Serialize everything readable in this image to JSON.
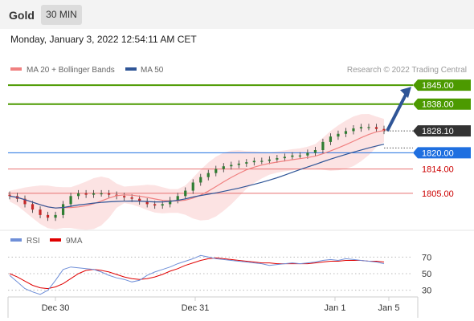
{
  "header": {
    "title": "Gold",
    "timeframe": "30 MIN"
  },
  "timestamp": "Monday, January 3, 2022 12:54:11 AM CET",
  "watermark": "Research © 2022 Trading Central",
  "colors": {
    "ma20": "#f08080",
    "ma50": "#2f5597",
    "resistance": "#4c9a00",
    "pivot": "#1f6fe0",
    "support": "#e87070",
    "support_text": "#cc0000",
    "current": "#333333",
    "rsi": "#6f8fd8",
    "rsi_ma": "#e00000"
  },
  "chart_data": [
    {
      "type": "candlestick",
      "title": "",
      "legend": [
        {
          "name": "MA 20 + Bollinger Bands",
          "color": "#f08080"
        },
        {
          "name": "MA 50",
          "color": "#2f5597"
        }
      ],
      "ylim": [
        1794,
        1848
      ],
      "x_ticks": [
        "Dec 30",
        "Dec 31",
        "Jan 1",
        "Jan 5"
      ],
      "levels": [
        {
          "value": 1845.0,
          "label": "1845.00",
          "kind": "resistance"
        },
        {
          "value": 1838.0,
          "label": "1838.00",
          "kind": "resistance"
        },
        {
          "value": 1820.0,
          "label": "1820.00",
          "kind": "pivot"
        },
        {
          "value": 1814.0,
          "label": "1814.00",
          "kind": "support"
        },
        {
          "value": 1805.0,
          "label": "1805.00",
          "kind": "support"
        }
      ],
      "current": {
        "value": 1828.1,
        "label": "1828.10"
      },
      "close_series": [
        1804,
        1803,
        1801,
        1799,
        1797,
        1796,
        1797,
        1801,
        1804,
        1805,
        1804.5,
        1805,
        1805,
        1804.5,
        1804,
        1803.5,
        1803,
        1802,
        1801,
        1800.5,
        1801,
        1802.5,
        1804,
        1806,
        1809,
        1811,
        1812.5,
        1814,
        1815,
        1815.5,
        1816,
        1816.5,
        1817,
        1817,
        1817.5,
        1818,
        1818.5,
        1819,
        1819,
        1820,
        1821,
        1824,
        1826,
        1827,
        1828,
        1829,
        1829.5,
        1829.5,
        1828.8,
        1828.1
      ]
    },
    {
      "type": "line",
      "title": "",
      "legend": [
        {
          "name": "RSI",
          "color": "#6f8fd8"
        },
        {
          "name": "9MA",
          "color": "#e00000"
        }
      ],
      "ylim": [
        20,
        80
      ],
      "y_ticks": [
        "70",
        "50",
        "30"
      ],
      "series": [
        {
          "name": "RSI",
          "values": [
            48,
            40,
            32,
            28,
            25,
            30,
            42,
            55,
            58,
            57,
            56,
            55,
            52,
            48,
            45,
            43,
            40,
            42,
            48,
            52,
            55,
            58,
            62,
            65,
            68,
            72,
            70,
            68,
            67,
            66,
            65,
            64,
            63,
            62,
            60,
            61,
            62,
            63,
            62,
            63,
            64,
            66,
            67,
            66,
            68,
            67,
            66,
            65,
            64,
            62
          ]
        },
        {
          "name": "9MA",
          "values": [
            50,
            46,
            41,
            36,
            33,
            32,
            34,
            38,
            44,
            50,
            54,
            55,
            54,
            52,
            49,
            46,
            44,
            43,
            44,
            46,
            49,
            53,
            56,
            60,
            63,
            66,
            68,
            69,
            68,
            67,
            66,
            65,
            64,
            63,
            63,
            62,
            62,
            62,
            62,
            62,
            63,
            64,
            65,
            65,
            66,
            66,
            66,
            65,
            65,
            64
          ]
        }
      ]
    }
  ]
}
